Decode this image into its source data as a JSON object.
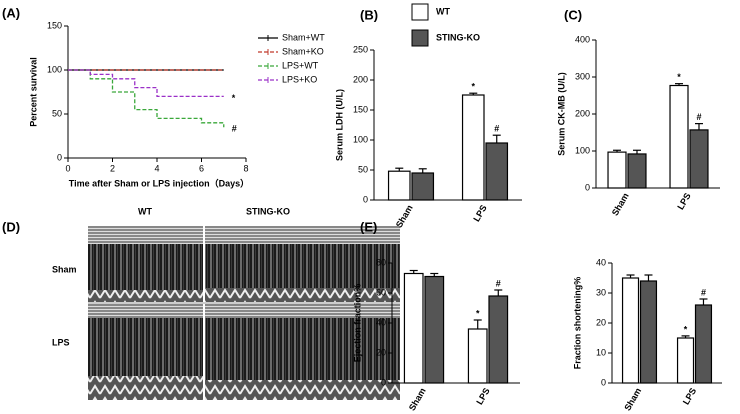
{
  "panel_labels": [
    "(A)",
    "(B)",
    "(C)",
    "(D)",
    "(E)"
  ],
  "echo": {
    "columns": [
      "WT",
      "STING-KO"
    ],
    "rows": [
      "Sham",
      "LPS"
    ]
  },
  "chart_data": [
    {
      "type": "step",
      "xlabel": "Time after Sham or LPS injection（Days）",
      "ylabel": "Percent survival",
      "xlim": [
        0,
        8
      ],
      "xticks": [
        0,
        2,
        4,
        6,
        8
      ],
      "ylim": [
        0,
        150
      ],
      "yticks": [
        0,
        50,
        100,
        150
      ],
      "series": [
        {
          "name": "Sham+WT",
          "color": "#000000",
          "dashed": false,
          "x": [
            0,
            7
          ],
          "values": [
            100,
            100
          ]
        },
        {
          "name": "Sham+KO",
          "color": "#c0392b",
          "dashed": true,
          "x": [
            0,
            7
          ],
          "values": [
            100,
            100
          ]
        },
        {
          "name": "LPS+WT",
          "color": "#3aa83a",
          "dashed": true,
          "x": [
            0,
            1,
            2,
            3,
            4,
            6,
            7
          ],
          "values": [
            100,
            90,
            75,
            55,
            45,
            40,
            35
          ],
          "end_label": "#"
        },
        {
          "name": "LPS+KO",
          "color": "#9b30c8",
          "dashed": true,
          "x": [
            0,
            1,
            2,
            3,
            4,
            7
          ],
          "values": [
            100,
            95,
            90,
            80,
            70,
            70
          ],
          "end_label": "*"
        }
      ]
    },
    {
      "type": "bar",
      "ylabel": "Serum LDH (U/L)",
      "categories": [
        "Sham",
        "LPS"
      ],
      "ylim": [
        0,
        250
      ],
      "yticks": [
        0,
        50,
        100,
        150,
        200,
        250
      ],
      "legend": true,
      "series": [
        {
          "name": "WT",
          "color": "#ffffff",
          "values": [
            48,
            175
          ],
          "errors": [
            5,
            3
          ],
          "annotations": [
            null,
            "*"
          ]
        },
        {
          "name": "STING-KO",
          "color": "#555555",
          "values": [
            45,
            95
          ],
          "errors": [
            7,
            13
          ],
          "annotations": [
            null,
            "#"
          ]
        }
      ]
    },
    {
      "type": "bar",
      "ylabel": "Serum CK-MB (U/L)",
      "categories": [
        "Sham",
        "LPS"
      ],
      "ylim": [
        0,
        400
      ],
      "yticks": [
        0,
        100,
        200,
        300,
        400
      ],
      "legend": false,
      "series": [
        {
          "color": "#ffffff",
          "values": [
            97,
            277
          ],
          "errors": [
            5,
            5
          ],
          "annotations": [
            null,
            "*"
          ]
        },
        {
          "color": "#555555",
          "values": [
            92,
            157
          ],
          "errors": [
            10,
            17
          ],
          "annotations": [
            null,
            "#"
          ]
        }
      ]
    },
    {
      "type": "bar",
      "ylabel": "Ejection fraction%",
      "categories": [
        "Sham",
        "LPS"
      ],
      "ylim": [
        0,
        80
      ],
      "yticks": [
        0,
        20,
        40,
        60,
        80
      ],
      "legend": false,
      "series": [
        {
          "color": "#ffffff",
          "values": [
            73,
            36
          ],
          "errors": [
            2,
            6
          ],
          "annotations": [
            null,
            "*"
          ]
        },
        {
          "color": "#555555",
          "values": [
            71,
            58
          ],
          "errors": [
            2,
            4
          ],
          "annotations": [
            null,
            "#"
          ]
        }
      ]
    },
    {
      "type": "bar",
      "ylabel": "Fraction shortening%",
      "categories": [
        "Sham",
        "LPS"
      ],
      "ylim": [
        0,
        40
      ],
      "yticks": [
        0,
        10,
        20,
        30,
        40
      ],
      "legend": false,
      "series": [
        {
          "color": "#ffffff",
          "values": [
            35,
            15
          ],
          "errors": [
            1,
            0.7
          ],
          "annotations": [
            null,
            "*"
          ]
        },
        {
          "color": "#555555",
          "values": [
            34,
            26
          ],
          "errors": [
            2,
            2
          ],
          "annotations": [
            null,
            "#"
          ]
        }
      ]
    }
  ]
}
